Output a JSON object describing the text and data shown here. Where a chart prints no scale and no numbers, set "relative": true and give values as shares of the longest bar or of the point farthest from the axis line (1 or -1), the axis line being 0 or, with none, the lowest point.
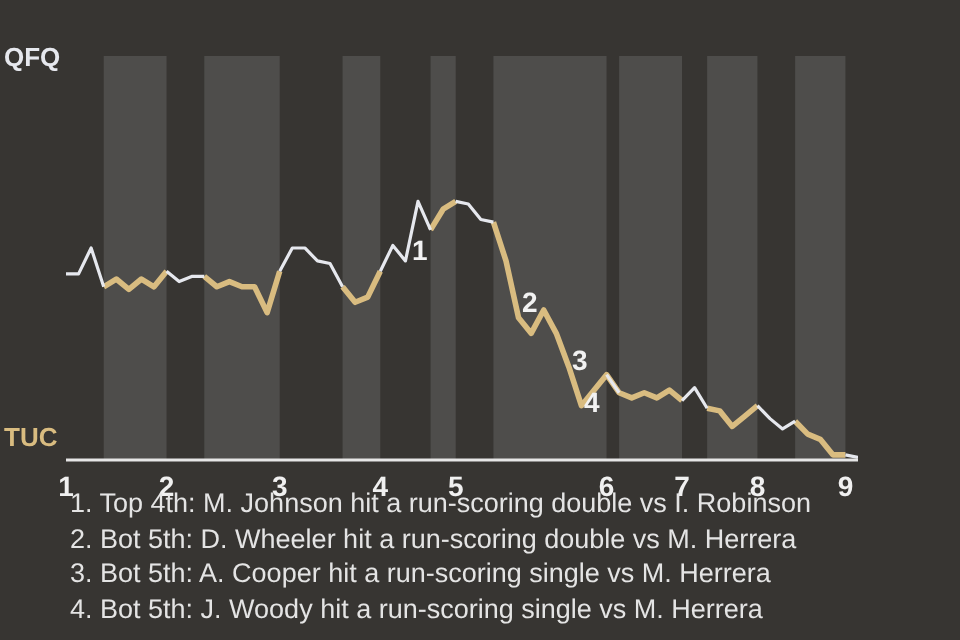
{
  "chart_data": {
    "type": "line",
    "categories": [
      "1",
      null,
      null,
      null,
      null,
      null,
      null,
      null,
      "2",
      null,
      null,
      null,
      null,
      null,
      null,
      null,
      null,
      "3",
      null,
      null,
      null,
      null,
      null,
      null,
      null,
      "4",
      null,
      null,
      null,
      null,
      null,
      "5",
      null,
      null,
      null,
      null,
      null,
      null,
      null,
      null,
      null,
      null,
      null,
      "6",
      null,
      null,
      null,
      null,
      null,
      "7",
      null,
      null,
      null,
      null,
      null,
      "8",
      null,
      null,
      null,
      null,
      null,
      null,
      "9",
      null
    ],
    "relative": true,
    "series": [
      {
        "color": "#e6e8ee",
        "values": [
          0.72,
          0.72,
          0.82,
          0.67,
          null,
          null,
          null,
          null,
          0.73,
          0.69,
          0.71,
          0.71,
          null,
          null,
          null,
          null,
          null,
          0.73,
          0.82,
          0.82,
          0.77,
          0.76,
          0.67,
          null,
          null,
          0.73,
          0.83,
          0.77,
          1,
          0.89,
          null,
          1,
          0.99,
          0.93,
          0.92,
          null,
          null,
          null,
          null,
          null,
          null,
          null,
          null,
          0.33,
          0.26,
          null,
          null,
          null,
          null,
          0.23,
          0.28,
          0.2,
          null,
          null,
          null,
          0.21,
          0.16,
          0.12,
          0.15,
          null,
          null,
          null,
          0.02,
          0.01
        ]
      },
      {
        "color": "#d9bc80",
        "values": [
          null,
          null,
          null,
          0.67,
          0.7,
          0.66,
          0.7,
          0.67,
          0.73,
          null,
          null,
          0.71,
          0.67,
          0.69,
          0.67,
          0.67,
          0.57,
          0.73,
          null,
          null,
          null,
          null,
          0.67,
          0.61,
          0.63,
          0.73,
          null,
          null,
          null,
          0.89,
          0.97,
          1,
          null,
          null,
          0.92,
          0.77,
          0.55,
          0.49,
          0.58,
          0.49,
          0.36,
          0.21,
          0.27,
          0.33,
          0.26,
          0.24,
          0.26,
          0.24,
          0.27,
          0.23,
          null,
          0.2,
          0.19,
          0.13,
          0.17,
          0.21,
          null,
          null,
          0.15,
          0.1,
          0.08,
          0.02,
          0.02,
          null
        ]
      }
    ],
    "marker": "none",
    "line_style": "solid",
    "annotations": [
      "QFQ",
      "TUC",
      "1",
      "2",
      "3",
      "4",
      "1. Top 4th: M. Johnson hit a run-scoring double vs I. Robinson",
      "2. Bot 5th: D. Wheeler hit a run-scoring double vs M. Herrera",
      "3. Bot 5th: A. Cooper hit a run-scoring single vs M. Herrera",
      "4. Bot 5th: J. Woody hit a run-scoring single vs M. Herrera"
    ]
  }
}
